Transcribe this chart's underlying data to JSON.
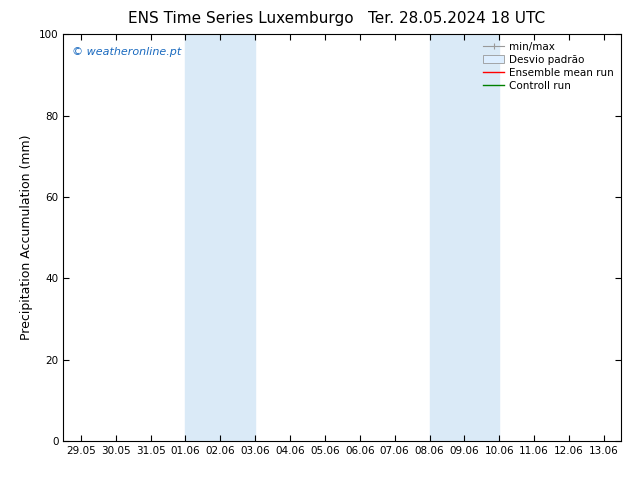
{
  "title_left": "ENS Time Series Luxemburgo",
  "title_right": "Ter. 28.05.2024 18 UTC",
  "ylabel": "Precipitation Accumulation (mm)",
  "ylim": [
    0,
    100
  ],
  "yticks": [
    0,
    20,
    40,
    60,
    80,
    100
  ],
  "x_labels": [
    "29.05",
    "30.05",
    "31.05",
    "01.06",
    "02.06",
    "03.06",
    "04.06",
    "05.06",
    "06.06",
    "07.06",
    "08.06",
    "09.06",
    "10.06",
    "11.06",
    "12.06",
    "13.06"
  ],
  "x_positions": [
    0,
    1,
    2,
    3,
    4,
    5,
    6,
    7,
    8,
    9,
    10,
    11,
    12,
    13,
    14,
    15
  ],
  "shade_regions": [
    {
      "start": 3,
      "end": 5
    },
    {
      "start": 10,
      "end": 12
    }
  ],
  "shade_color": "#daeaf7",
  "background_color": "#ffffff",
  "watermark_text": "© weatheronline.pt",
  "watermark_color": "#1a6abf",
  "legend_minmax_color": "#999999",
  "legend_box_facecolor": "#ddeeff",
  "legend_box_edgecolor": "#999999",
  "legend_ens_color": "red",
  "legend_ctrl_color": "green",
  "title_fontsize": 11,
  "tick_fontsize": 7.5,
  "ylabel_fontsize": 9,
  "watermark_fontsize": 8,
  "legend_fontsize": 7.5
}
